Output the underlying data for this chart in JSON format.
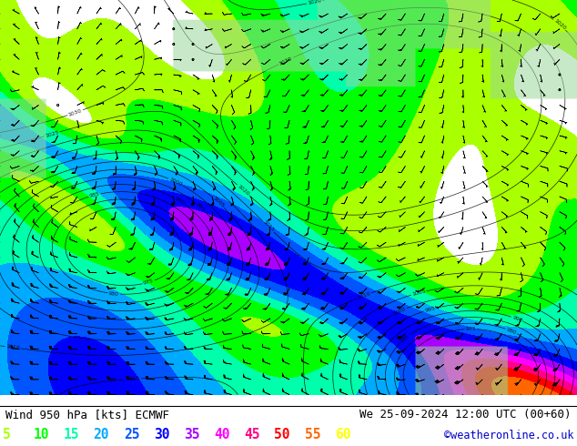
{
  "title_left": "Wind 950 hPa [kts] ECMWF",
  "title_right": "We 25-09-2024 12:00 UTC (00+60)",
  "credit": "©weatheronline.co.uk",
  "legend_values": [
    "5",
    "10",
    "15",
    "20",
    "25",
    "30",
    "35",
    "40",
    "45",
    "50",
    "55",
    "60"
  ],
  "legend_colors": [
    "#aaff00",
    "#00ff00",
    "#00ffaa",
    "#00aaff",
    "#0055ff",
    "#0000ff",
    "#aa00ff",
    "#ff00ff",
    "#ff0088",
    "#ff0000",
    "#ff6600",
    "#ffff00"
  ],
  "bg_color": "#ffffff",
  "ocean_color": "#ffffff",
  "figsize": [
    6.34,
    4.9
  ],
  "dpi": 100,
  "font_color": "#000000",
  "credit_color": "#0000cc",
  "contour_colors": [
    "#aaff00",
    "#00ff00",
    "#00ffaa",
    "#00aaff",
    "#0055ff",
    "#0000ff",
    "#aa00ff",
    "#ff00ff",
    "#ff0088",
    "#ff0000",
    "#ff6600",
    "#ffff00"
  ],
  "wind_levels": [
    5,
    10,
    15,
    20,
    25,
    30,
    35,
    40,
    45,
    50,
    55,
    60,
    80
  ],
  "pressure_levels": [
    880,
    885,
    890,
    895,
    900,
    905,
    910,
    915,
    920,
    925,
    930,
    935,
    940,
    945,
    950,
    955,
    960,
    965,
    970,
    975,
    980,
    985,
    990,
    995,
    1000,
    1005,
    1010,
    1015,
    1020,
    1025,
    1030,
    1035
  ]
}
